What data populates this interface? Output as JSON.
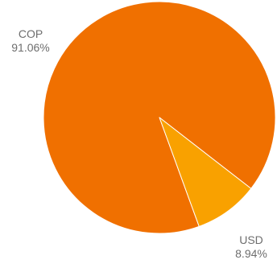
{
  "chart_data": {
    "type": "pie",
    "title": "",
    "categories": [
      "COP",
      "USD"
    ],
    "values": [
      91.06,
      8.94
    ],
    "value_labels": [
      "91.06%",
      "8.94%"
    ],
    "start_angle_deg": 160,
    "direction": "clockwise",
    "colors": [
      "#f07000",
      "#f9a100"
    ],
    "slice_border_color": "#ffffff",
    "legend": "none",
    "labels_outside": true
  }
}
